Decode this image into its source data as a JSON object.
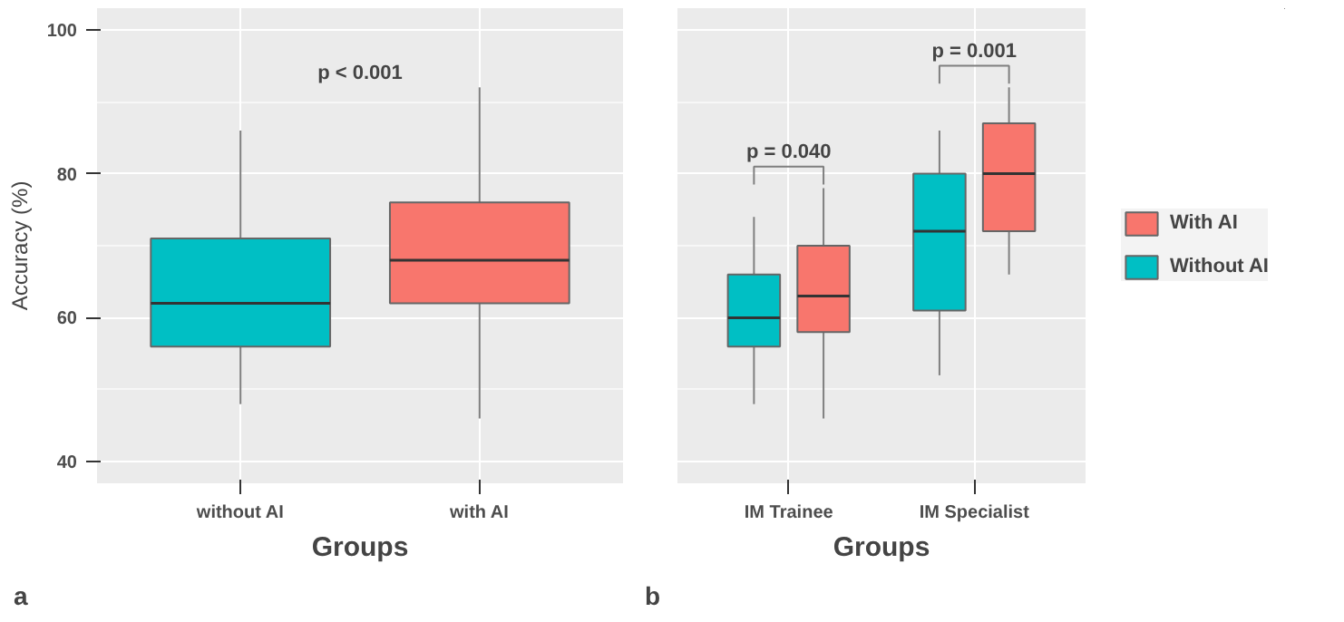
{
  "chart_data": [
    {
      "type": "box",
      "categories": [
        "without AI",
        "with AI"
      ],
      "boxes": [
        {
          "low": 48,
          "q1": 56,
          "median": 62,
          "q3": 71,
          "high": 86
        },
        {
          "low": 46,
          "q1": 62,
          "median": 68,
          "q3": 76,
          "high": 92
        }
      ],
      "colors": [
        "#00bfc4",
        "#f8766d"
      ],
      "xlabel": "Groups",
      "ylabel": "Accuracy (%)",
      "ylim": [
        37,
        103
      ],
      "yticks": [
        40,
        60,
        80,
        100
      ],
      "grid": true,
      "annotations": [
        "p < 0.001",
        "a"
      ]
    },
    {
      "type": "box",
      "categories": [
        "IM Trainee",
        "IM Specialist"
      ],
      "series": [
        {
          "name": "Without AI",
          "color": "#00bfc4",
          "boxes": [
            {
              "low": 48,
              "q1": 56,
              "median": 60,
              "q3": 66,
              "high": 74
            },
            {
              "low": 52,
              "q1": 61,
              "median": 72,
              "q3": 80,
              "high": 86
            }
          ]
        },
        {
          "name": "With AI",
          "color": "#f8766d",
          "boxes": [
            {
              "low": 46,
              "q1": 58,
              "median": 63,
              "q3": 70,
              "high": 78
            },
            {
              "low": 66,
              "q1": 72,
              "median": 80,
              "q3": 87,
              "high": 92
            }
          ]
        }
      ],
      "xlabel": "Groups",
      "ylim": [
        37,
        103
      ],
      "yticks": [
        40,
        60,
        80,
        100
      ],
      "tick_labels": "x",
      "grid": true,
      "legend": "right",
      "annotations": [
        "p = 0.040",
        "p = 0.001",
        "b"
      ]
    }
  ]
}
